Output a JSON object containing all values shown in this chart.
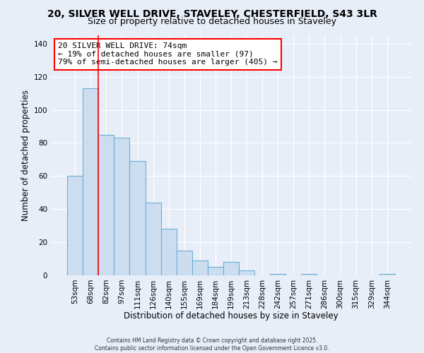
{
  "title": "20, SILVER WELL DRIVE, STAVELEY, CHESTERFIELD, S43 3LR",
  "subtitle": "Size of property relative to detached houses in Staveley",
  "xlabel": "Distribution of detached houses by size in Staveley",
  "ylabel": "Number of detached properties",
  "bar_labels": [
    "53sqm",
    "68sqm",
    "82sqm",
    "97sqm",
    "111sqm",
    "126sqm",
    "140sqm",
    "155sqm",
    "169sqm",
    "184sqm",
    "199sqm",
    "213sqm",
    "228sqm",
    "242sqm",
    "257sqm",
    "271sqm",
    "286sqm",
    "300sqm",
    "315sqm",
    "329sqm",
    "344sqm"
  ],
  "bar_values": [
    60,
    113,
    85,
    83,
    69,
    44,
    28,
    15,
    9,
    5,
    8,
    3,
    0,
    1,
    0,
    1,
    0,
    0,
    0,
    0,
    1
  ],
  "bar_color": "#ccddf0",
  "bar_edge_color": "#6baed6",
  "ylim": [
    0,
    145
  ],
  "yticks": [
    0,
    20,
    40,
    60,
    80,
    100,
    120,
    140
  ],
  "red_line_x": 1.5,
  "annotation_title": "20 SILVER WELL DRIVE: 74sqm",
  "annotation_line1": "← 19% of detached houses are smaller (97)",
  "annotation_line2": "79% of semi-detached houses are larger (405) →",
  "footer_line1": "Contains HM Land Registry data © Crown copyright and database right 2025.",
  "footer_line2": "Contains public sector information licensed under the Open Government Licence v3.0.",
  "background_color": "#e8eef8",
  "title_fontsize": 10,
  "subtitle_fontsize": 9,
  "axis_fontsize": 8.5,
  "tick_fontsize": 7.5,
  "annotation_fontsize": 8
}
